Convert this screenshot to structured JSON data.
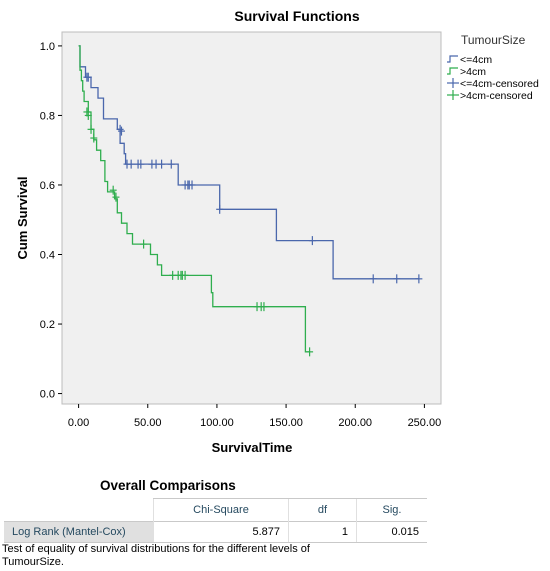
{
  "chart_data": {
    "type": "line",
    "title": "Survival Functions",
    "xlabel": "SurvivalTime",
    "ylabel": "Cum Survival",
    "xlim": [
      -12,
      262
    ],
    "ylim": [
      -0.03,
      1.04
    ],
    "xticks": [
      0,
      50,
      100,
      150,
      200,
      250
    ],
    "xtick_labels": [
      "0.00",
      "50.00",
      "100.00",
      "150.00",
      "200.00",
      "250.00"
    ],
    "yticks": [
      0.0,
      0.2,
      0.4,
      0.6,
      0.8,
      1.0
    ],
    "ytick_labels": [
      "0.0",
      "0.2",
      "0.4",
      "0.6",
      "0.8",
      "1.0"
    ],
    "grid": false,
    "legend": {
      "title": "TumourSize",
      "position": "right"
    },
    "series": [
      {
        "name": "<=4cm",
        "color": "#4a67ac",
        "steps": [
          [
            0,
            1.0
          ],
          [
            1,
            0.94
          ],
          [
            5,
            0.91
          ],
          [
            9,
            0.88
          ],
          [
            14,
            0.85
          ],
          [
            18,
            0.79
          ],
          [
            28,
            0.76
          ],
          [
            30,
            0.72
          ],
          [
            33,
            0.69
          ],
          [
            34,
            0.66
          ],
          [
            68,
            0.66
          ],
          [
            72,
            0.6
          ],
          [
            100,
            0.6
          ],
          [
            102,
            0.53
          ],
          [
            142,
            0.53
          ],
          [
            143,
            0.44
          ],
          [
            183,
            0.44
          ],
          [
            184,
            0.33
          ],
          [
            246,
            0.33
          ]
        ],
        "censored_name": "<=4cm-censored",
        "censored": [
          [
            6,
            0.91
          ],
          [
            7,
            0.91
          ],
          [
            30,
            0.76
          ],
          [
            31,
            0.755
          ],
          [
            35,
            0.66
          ],
          [
            38,
            0.66
          ],
          [
            43,
            0.66
          ],
          [
            45,
            0.66
          ],
          [
            53,
            0.66
          ],
          [
            56,
            0.66
          ],
          [
            60,
            0.66
          ],
          [
            67,
            0.66
          ],
          [
            77,
            0.6
          ],
          [
            79,
            0.6
          ],
          [
            80,
            0.6
          ],
          [
            82,
            0.6
          ],
          [
            102,
            0.53
          ],
          [
            169,
            0.44
          ],
          [
            213,
            0.33
          ],
          [
            230,
            0.33
          ],
          [
            246,
            0.33
          ]
        ]
      },
      {
        "name": ">4cm",
        "color": "#2fae4e",
        "steps": [
          [
            0,
            1.0
          ],
          [
            1,
            0.93
          ],
          [
            2,
            0.9
          ],
          [
            3,
            0.87
          ],
          [
            4,
            0.84
          ],
          [
            7,
            0.81
          ],
          [
            9,
            0.76
          ],
          [
            11,
            0.73
          ],
          [
            13,
            0.7
          ],
          [
            16,
            0.67
          ],
          [
            19,
            0.61
          ],
          [
            21,
            0.58
          ],
          [
            26,
            0.56
          ],
          [
            28,
            0.52
          ],
          [
            31,
            0.49
          ],
          [
            35,
            0.46
          ],
          [
            39,
            0.43
          ],
          [
            52,
            0.4
          ],
          [
            57,
            0.37
          ],
          [
            60,
            0.34
          ],
          [
            95,
            0.34
          ],
          [
            96,
            0.29
          ],
          [
            97,
            0.25
          ],
          [
            163,
            0.25
          ],
          [
            164,
            0.12
          ],
          [
            167,
            0.12
          ]
        ],
        "censored_name": ">4cm-censored",
        "censored": [
          [
            6,
            0.81
          ],
          [
            7,
            0.8
          ],
          [
            9,
            0.76
          ],
          [
            11,
            0.735
          ],
          [
            25,
            0.585
          ],
          [
            27,
            0.565
          ],
          [
            47,
            0.43
          ],
          [
            68,
            0.34
          ],
          [
            72,
            0.34
          ],
          [
            74,
            0.34
          ],
          [
            75,
            0.34
          ],
          [
            77,
            0.34
          ],
          [
            129,
            0.25
          ],
          [
            132,
            0.25
          ],
          [
            134,
            0.25
          ],
          [
            167,
            0.12
          ]
        ]
      }
    ]
  },
  "comparisons": {
    "title": "Overall Comparisons",
    "headers": [
      "",
      "Chi-Square",
      "df",
      "Sig."
    ],
    "row": {
      "label": "Log Rank (Mantel-Cox)",
      "chi_square": "5.877",
      "df": "1",
      "sig": "0.015"
    },
    "footnote": "Test of equality of survival distributions for the different levels of TumourSize."
  }
}
